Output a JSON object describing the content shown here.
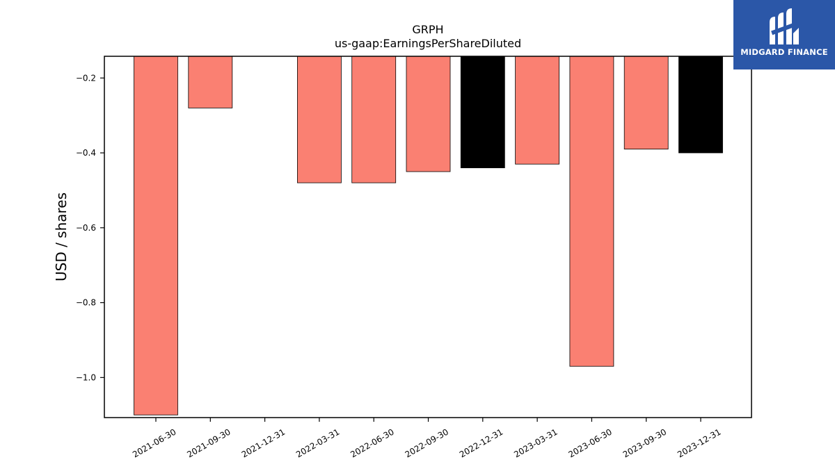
{
  "chart_data": {
    "type": "bar",
    "title": "GRPH",
    "subtitle": "us-gaap:EarningsPerShareDiluted",
    "ylabel": "USD / shares",
    "xlabel": "",
    "categories": [
      "2021-06-30",
      "2021-09-30",
      "2021-12-31",
      "2022-03-31",
      "2022-06-30",
      "2022-09-30",
      "2022-12-31",
      "2023-03-31",
      "2023-06-30",
      "2023-09-30",
      "2023-12-31"
    ],
    "values": [
      -1.1,
      -0.28,
      null,
      -0.48,
      -0.48,
      -0.45,
      -0.44,
      -0.43,
      -0.97,
      -0.39,
      -0.4
    ],
    "bar_colors": [
      "#fa8072",
      "#fa8072",
      "#fa8072",
      "#fa8072",
      "#fa8072",
      "#fa8072",
      "#000000",
      "#fa8072",
      "#fa8072",
      "#fa8072",
      "#000000"
    ],
    "ylim": [
      -1.107,
      -0.142
    ],
    "yticks": [
      -0.2,
      -0.4,
      -0.6,
      -0.8,
      -1.0
    ],
    "ytick_labels": [
      "−0.2",
      "−0.4",
      "−0.6",
      "−0.8",
      "−1.0"
    ],
    "grid": false,
    "legend": "none"
  },
  "logo": {
    "text": "MIDGARD FINANCE",
    "background": "#2b57a8"
  }
}
